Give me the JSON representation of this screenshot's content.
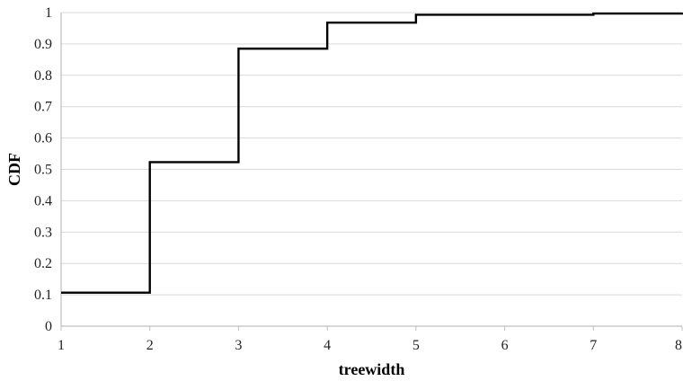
{
  "chart_data": {
    "type": "line",
    "step": true,
    "title": "",
    "xlabel": "treewidth",
    "ylabel": "CDF",
    "x_ticks": [
      "1",
      "2",
      "3",
      "4",
      "5",
      "6",
      "7",
      "8"
    ],
    "y_ticks": [
      "0",
      "0.1",
      "0.2",
      "0.3",
      "0.4",
      "0.5",
      "0.6",
      "0.7",
      "0.8",
      "0.9",
      "1"
    ],
    "xlim": [
      1,
      8
    ],
    "ylim": [
      0,
      1
    ],
    "grid": "horizontal",
    "legend": "none",
    "series": [
      {
        "x": [
          1,
          2,
          3,
          4,
          5,
          6,
          7,
          8
        ],
        "y": [
          0.107,
          0.523,
          0.885,
          0.968,
          0.993,
          0.993,
          0.997,
          1.0
        ]
      }
    ],
    "colors": {
      "line": "#000000",
      "grid": "#d9d9d9",
      "axis": "#bfbfbf"
    }
  }
}
